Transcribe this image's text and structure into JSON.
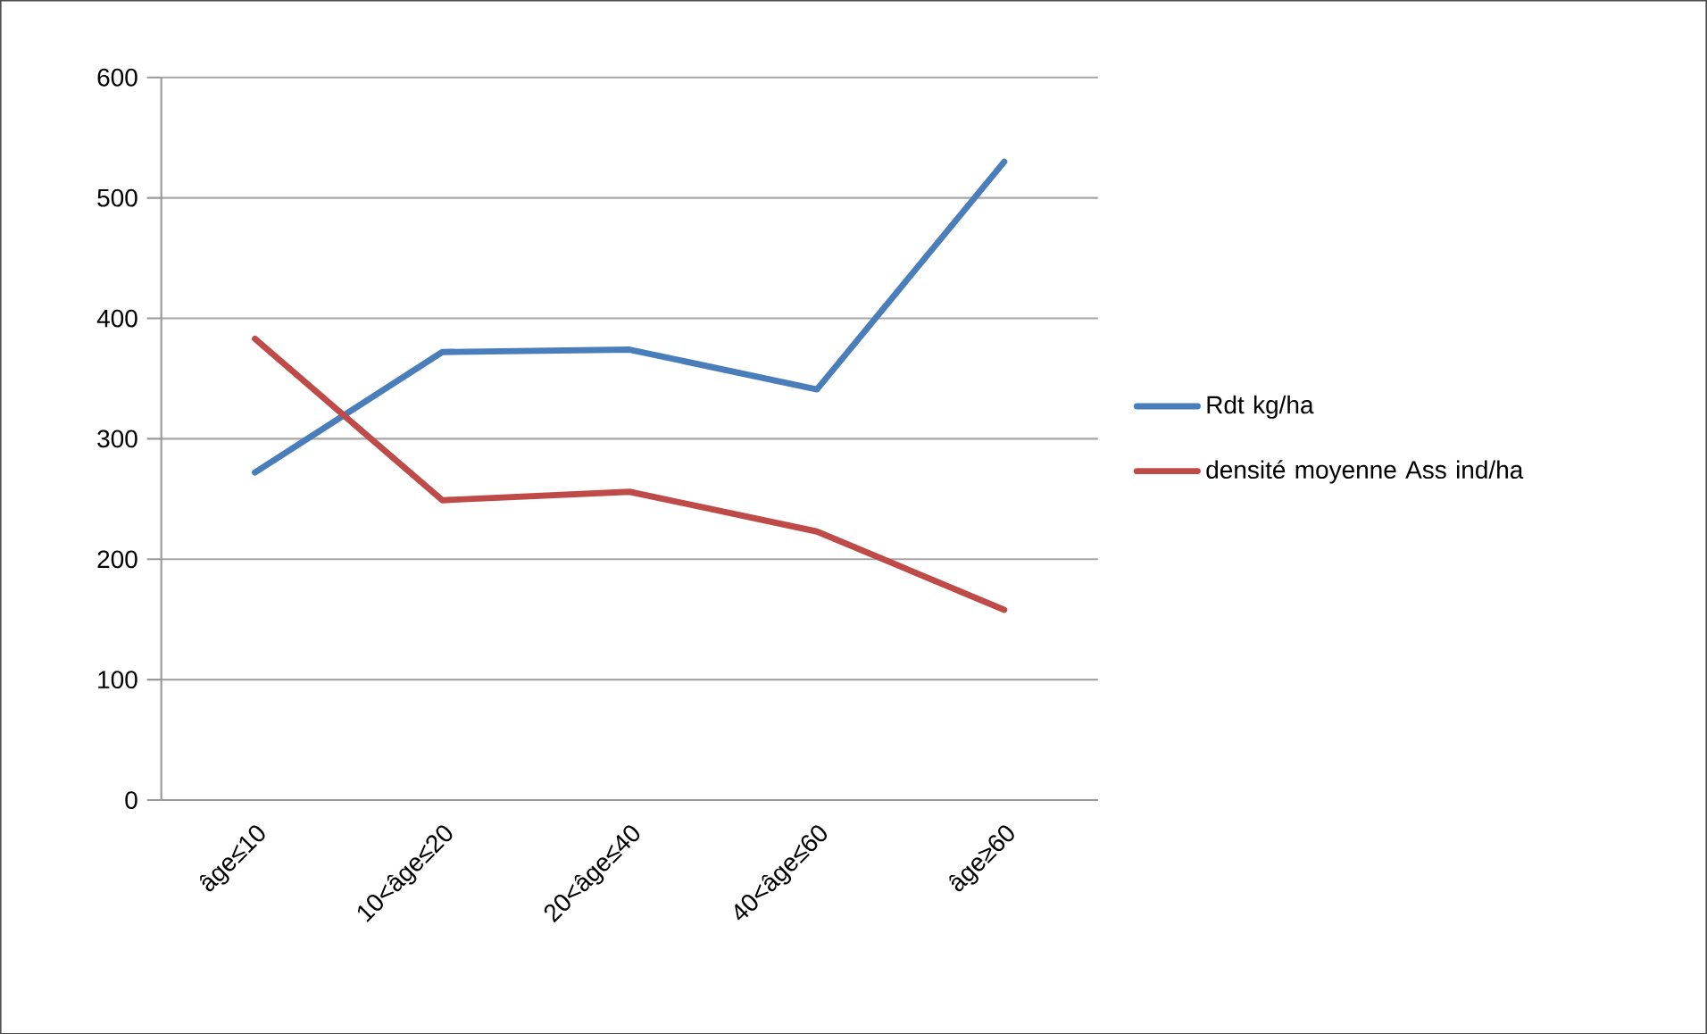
{
  "chart_data": {
    "type": "line",
    "categories": [
      "âge≤10",
      "10<âge≤20",
      "20<âge≤40",
      "40<âge≤60",
      "âge≥60"
    ],
    "series": [
      {
        "name": "Rdt kg/ha",
        "color": "#4a7ebb",
        "values": [
          272,
          372,
          374,
          341,
          530
        ]
      },
      {
        "name": "densité moyenne Ass ind/ha",
        "color": "#be4b48",
        "values": [
          383,
          249,
          256,
          223,
          158
        ]
      }
    ],
    "ylim": [
      0,
      600
    ],
    "yticks": [
      0,
      100,
      200,
      300,
      400,
      500,
      600
    ],
    "grid": "y",
    "legend": "right",
    "marker": "none",
    "line_style": "solid"
  }
}
